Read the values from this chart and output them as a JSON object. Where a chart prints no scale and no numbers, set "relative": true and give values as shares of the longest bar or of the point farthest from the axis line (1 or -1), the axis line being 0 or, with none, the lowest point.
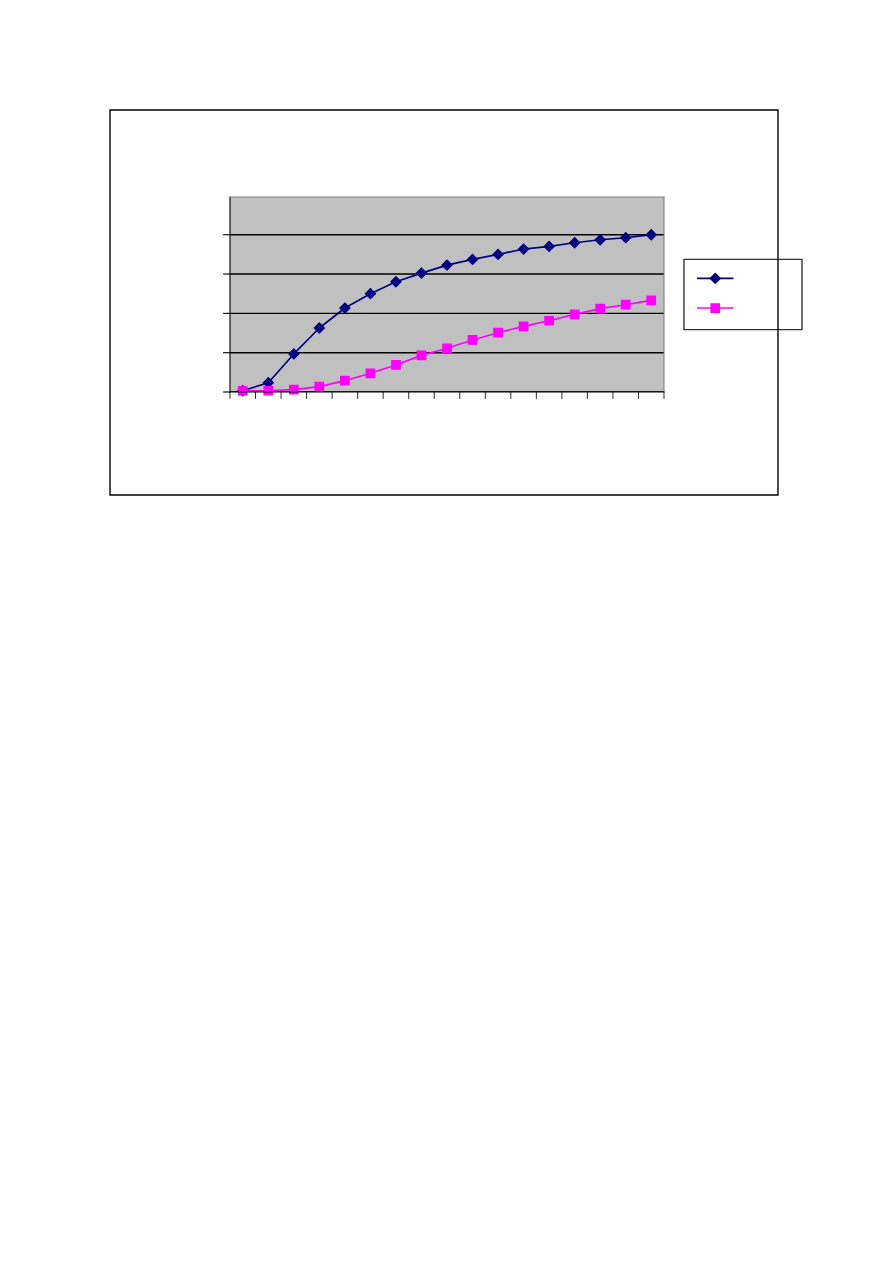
{
  "chart_data": {
    "type": "line",
    "relative": true,
    "categories": [
      null,
      null,
      null,
      null,
      null,
      null,
      null,
      null,
      null,
      null,
      null,
      null,
      null,
      null,
      null,
      null,
      null
    ],
    "series": [
      {
        "color": "#000080",
        "marker": "diamond",
        "values": [
          0.008,
          0.059,
          0.242,
          0.407,
          0.534,
          0.625,
          0.701,
          0.756,
          0.807,
          0.843,
          0.875,
          0.909,
          0.926,
          0.949,
          0.968,
          0.981,
          1
        ]
      },
      {
        "color": "#ff00ff",
        "marker": "square",
        "values": [
          0.008,
          0.008,
          0.015,
          0.034,
          0.072,
          0.119,
          0.172,
          0.233,
          0.278,
          0.331,
          0.377,
          0.417,
          0.453,
          0.494,
          0.53,
          0.555,
          0.583
        ]
      }
    ],
    "grid": "y",
    "tick_labels": false
  }
}
